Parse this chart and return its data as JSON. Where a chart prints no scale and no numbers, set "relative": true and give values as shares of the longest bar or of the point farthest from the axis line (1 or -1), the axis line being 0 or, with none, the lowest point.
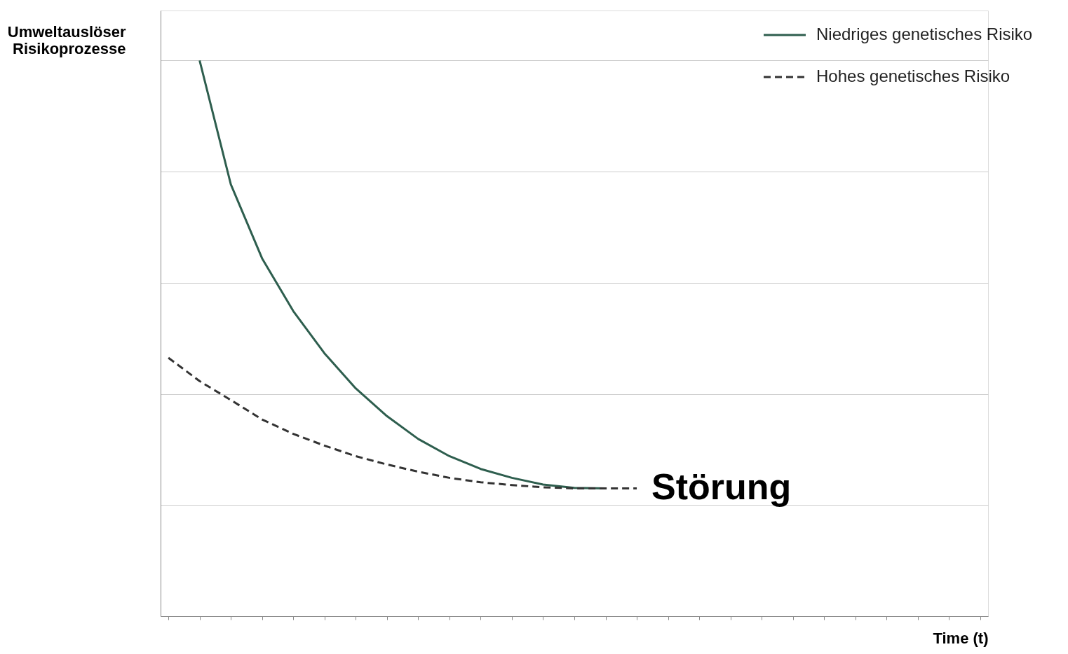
{
  "chart_data": {
    "type": "line",
    "relative": true,
    "xlabel": "Time (t)",
    "ylabel": "Umweltauslöser\nRisikoprozesse",
    "categories": [
      null,
      null,
      null,
      null,
      null,
      null,
      null,
      null,
      null,
      null,
      null,
      null,
      null,
      null,
      null,
      null,
      null,
      null,
      null,
      null,
      null,
      null,
      null,
      null,
      null,
      null,
      null
    ],
    "series": [
      {
        "name": "Niedriges genetisches Risiko",
        "color": "#2e5e4e",
        "line_style": "solid",
        "values": [
          null,
          1.0,
          0.777,
          0.644,
          0.549,
          0.473,
          0.41,
          0.36,
          0.319,
          0.288,
          0.265,
          0.249,
          0.237,
          0.231,
          0.23,
          null,
          null,
          null,
          null,
          null,
          null,
          null,
          null,
          null,
          null,
          null,
          null
        ]
      },
      {
        "name": "Hohes genetisches Risiko",
        "color": "#333333",
        "line_style": "dashed",
        "values": [
          0.465,
          0.423,
          0.389,
          0.354,
          0.328,
          0.307,
          0.288,
          0.273,
          0.26,
          0.249,
          0.241,
          0.236,
          0.232,
          0.23,
          0.23,
          0.23,
          null,
          null,
          null,
          null,
          null,
          null,
          null,
          null,
          null,
          null,
          null
        ]
      }
    ],
    "annotations": [
      "Störung"
    ],
    "grid": "y",
    "legend": "top right",
    "marker": "none"
  }
}
